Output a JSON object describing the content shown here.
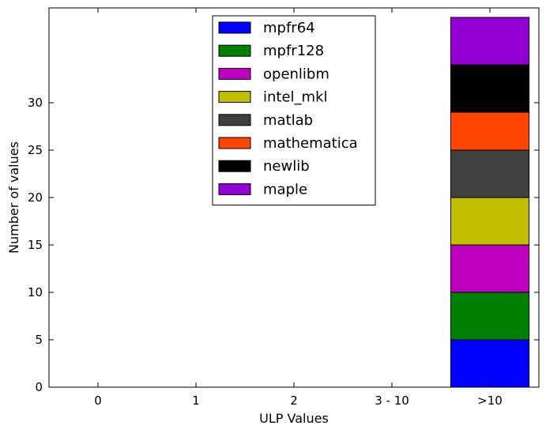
{
  "chart_data": {
    "type": "bar",
    "stacked": true,
    "categories": [
      "0",
      "1",
      "2",
      "3 - 10",
      ">10"
    ],
    "xlabel": "ULP Values",
    "ylabel": "Number of values",
    "ylim": [
      0,
      40
    ],
    "yticks": [
      0,
      5,
      10,
      15,
      20,
      25,
      30
    ],
    "grid": false,
    "legend_position": "top-center",
    "series": [
      {
        "name": "mpfr64",
        "color": "#0000ff",
        "values": [
          0,
          0,
          0,
          0,
          5
        ]
      },
      {
        "name": "mpfr128",
        "color": "#008000",
        "values": [
          0,
          0,
          0,
          0,
          5
        ]
      },
      {
        "name": "openlibm",
        "color": "#bf00bf",
        "values": [
          0,
          0,
          0,
          0,
          5
        ]
      },
      {
        "name": "intel_mkl",
        "color": "#bfbf00",
        "values": [
          0,
          0,
          0,
          0,
          5
        ]
      },
      {
        "name": "matlab",
        "color": "#404040",
        "values": [
          0,
          0,
          0,
          0,
          5
        ]
      },
      {
        "name": "mathematica",
        "color": "#ff4500",
        "values": [
          0,
          0,
          0,
          0,
          4
        ]
      },
      {
        "name": "newlib",
        "color": "#000000",
        "values": [
          0,
          0,
          0,
          0,
          5
        ]
      },
      {
        "name": "maple",
        "color": "#9400d3",
        "values": [
          0,
          0,
          0,
          0,
          5
        ]
      }
    ]
  }
}
